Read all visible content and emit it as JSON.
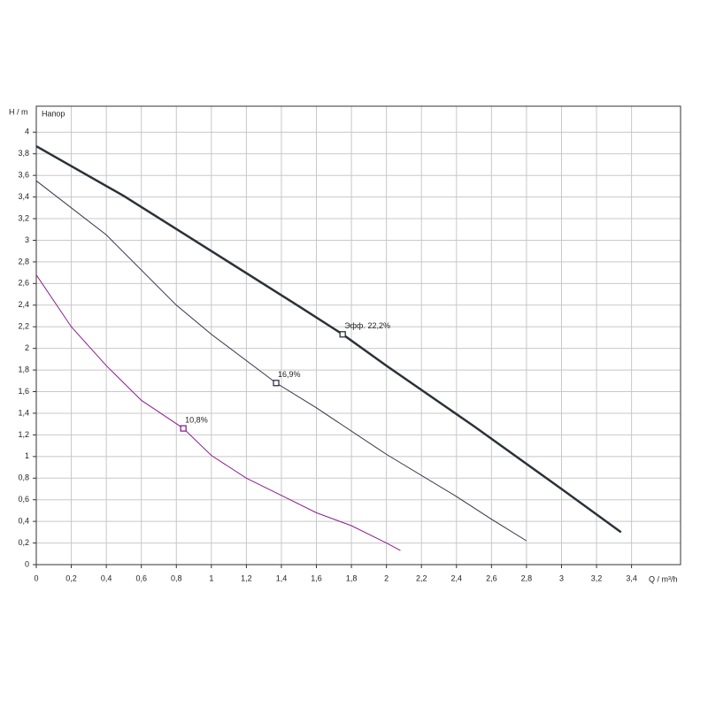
{
  "chart_data": {
    "type": "line",
    "y_label": "H / m",
    "x_label": "Q / m³/h",
    "plot_label": "Напор",
    "xlim": [
      0,
      3.68
    ],
    "ylim": [
      0,
      4.24
    ],
    "grid": true,
    "xticks": [
      0,
      {
        "value": 0.2,
        "label": "0,2"
      },
      {
        "value": 0.4,
        "label": "0,4"
      },
      {
        "value": 0.6,
        "label": "0,6"
      },
      {
        "value": 0.8,
        "label": "0,8"
      },
      1,
      {
        "value": 1.2,
        "label": "1,2"
      },
      {
        "value": 1.4,
        "label": "1,4"
      },
      {
        "value": 1.6,
        "label": "1,6"
      },
      {
        "value": 1.8,
        "label": "1,8"
      },
      2,
      {
        "value": 2.2,
        "label": "2,2"
      },
      {
        "value": 2.4,
        "label": "2,4"
      },
      {
        "value": 2.6,
        "label": "2,6"
      },
      {
        "value": 2.8,
        "label": "2,8"
      },
      3,
      {
        "value": 3.2,
        "label": "3,2"
      },
      {
        "value": 3.4,
        "label": "3,4"
      }
    ],
    "yticks": [
      0,
      {
        "value": 0.2,
        "label": "0,2"
      },
      {
        "value": 0.4,
        "label": "0,4"
      },
      {
        "value": 0.6,
        "label": "0,6"
      },
      {
        "value": 0.8,
        "label": "0,8"
      },
      1,
      {
        "value": 1.2,
        "label": "1,2"
      },
      {
        "value": 1.4,
        "label": "1,4"
      },
      {
        "value": 1.6,
        "label": "1,6"
      },
      {
        "value": 1.8,
        "label": "1,8"
      },
      2,
      {
        "value": 2.2,
        "label": "2,2"
      },
      {
        "value": 2.4,
        "label": "2,4"
      },
      {
        "value": 2.6,
        "label": "2,6"
      },
      {
        "value": 2.8,
        "label": "2,8"
      },
      3,
      {
        "value": 3.2,
        "label": "3,2"
      },
      {
        "value": 3.4,
        "label": "3,4"
      },
      {
        "value": 3.6,
        "label": "3,6"
      },
      {
        "value": 3.8,
        "label": "3,8"
      },
      4
    ],
    "series": [
      {
        "color": "#2a3238",
        "width": 2.5,
        "x": [
          0,
          0.5,
          1.0,
          1.5,
          1.75,
          2.0,
          2.5,
          3.0,
          3.34
        ],
        "values": [
          3.87,
          3.41,
          2.9,
          2.39,
          2.13,
          1.84,
          1.28,
          0.7,
          0.3
        ],
        "annotation": {
          "text": "Эфф.  22,2%",
          "x": 1.75,
          "y": 2.13
        }
      },
      {
        "color": "#3a2f4a",
        "width": 1,
        "x": [
          0,
          0.4,
          0.8,
          1.0,
          1.37,
          1.6,
          2.0,
          2.4,
          2.6,
          2.8
        ],
        "values": [
          3.55,
          3.05,
          2.4,
          2.13,
          1.68,
          1.45,
          1.02,
          0.63,
          0.42,
          0.22
        ],
        "annotation": {
          "text": "16,9%",
          "x": 1.37,
          "y": 1.68
        }
      },
      {
        "color": "#8a1f8f",
        "width": 1,
        "x": [
          0,
          0.2,
          0.4,
          0.6,
          0.84,
          1.0,
          1.2,
          1.4,
          1.6,
          1.8,
          2.0,
          2.08
        ],
        "values": [
          2.68,
          2.2,
          1.84,
          1.52,
          1.26,
          1.01,
          0.8,
          0.64,
          0.48,
          0.36,
          0.2,
          0.13
        ],
        "annotation": {
          "text": "10,8%",
          "x": 0.84,
          "y": 1.26
        }
      }
    ]
  }
}
